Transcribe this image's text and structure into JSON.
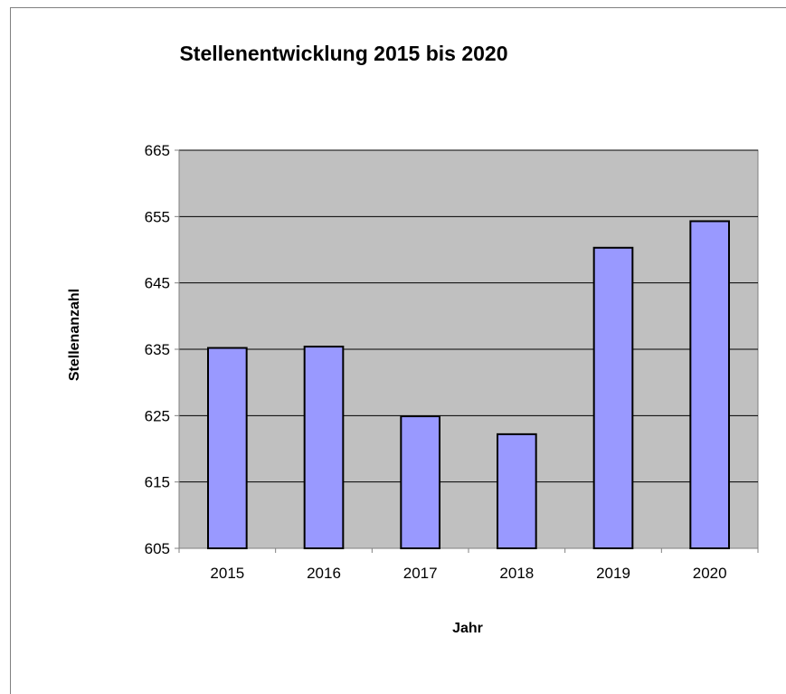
{
  "chart_data": {
    "type": "bar",
    "title": "Stellenentwicklung 2015 bis 2020",
    "xlabel": "Jahr",
    "ylabel": "Stellenanzahl",
    "categories": [
      "2015",
      "2016",
      "2017",
      "2018",
      "2019",
      "2020"
    ],
    "values": [
      635.2,
      635.4,
      624.9,
      622.2,
      650.3,
      654.3
    ],
    "ylim": [
      605,
      665
    ],
    "yticks": [
      605,
      615,
      625,
      635,
      645,
      655,
      665
    ],
    "grid": true,
    "legend": "none"
  },
  "colors": {
    "bar_fill": "#9999ff",
    "bar_stroke": "#000000",
    "plot_background": "#c0c0c0",
    "gridline": "#000000",
    "axis": "#808080"
  }
}
